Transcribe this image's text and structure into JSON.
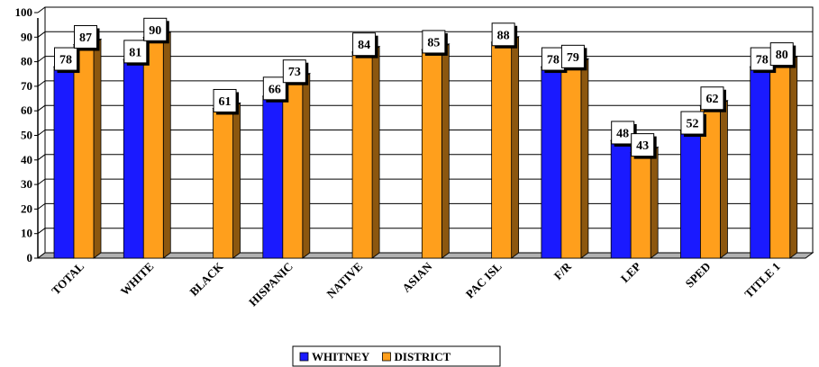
{
  "chart_data": {
    "type": "bar",
    "categories": [
      "TOTAL",
      "WHITE",
      "BLACK",
      "HISPANIC",
      "NATIVE",
      "ASIAN",
      "PAC ISL",
      "F/R",
      "LEP",
      "SPED",
      "TITLE 1"
    ],
    "series": [
      {
        "name": "WHITNEY",
        "color": "#1a1aff",
        "values": [
          78,
          81,
          null,
          66,
          null,
          null,
          null,
          78,
          48,
          52,
          78
        ]
      },
      {
        "name": "DISTRICT",
        "color": "#ff9f1c",
        "values": [
          87,
          90,
          61,
          73,
          84,
          85,
          88,
          79,
          43,
          62,
          80
        ]
      }
    ],
    "ylim": [
      0,
      100
    ],
    "yticks": [
      0,
      10,
      20,
      30,
      40,
      50,
      60,
      70,
      80,
      90,
      100
    ],
    "grid": true,
    "legend": "bottom-center",
    "title": "",
    "xlabel": "",
    "ylabel": ""
  }
}
